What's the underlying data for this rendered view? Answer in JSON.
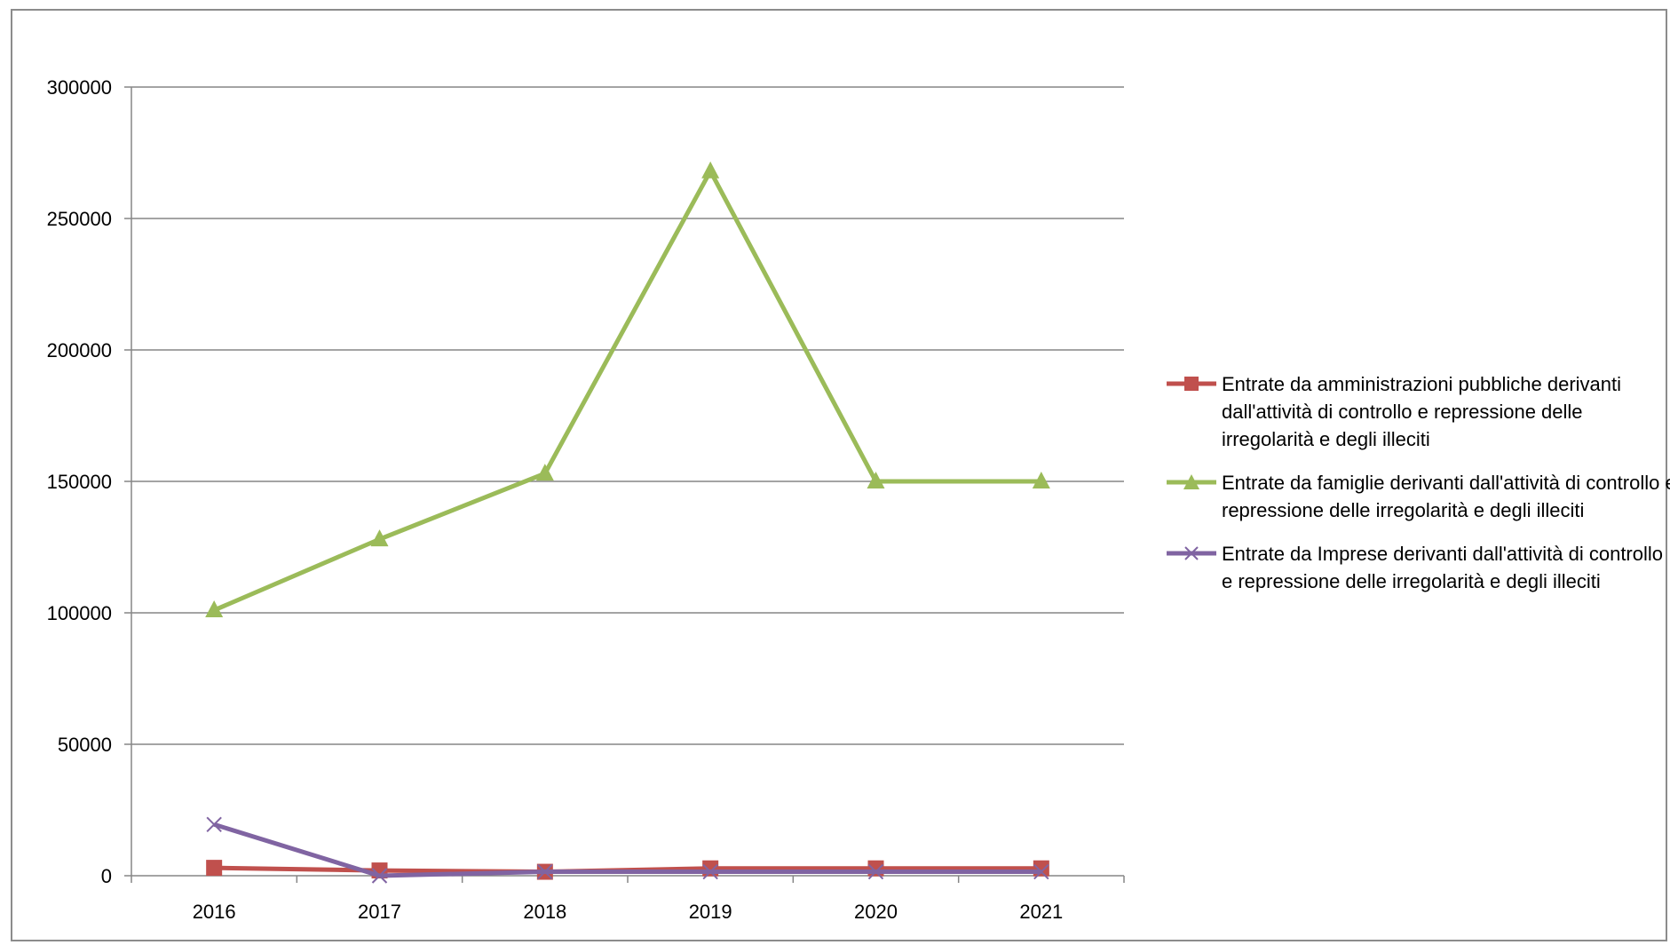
{
  "chart_data": {
    "type": "line",
    "title": "",
    "xlabel": "",
    "ylabel": "",
    "categories": [
      "2016",
      "2017",
      "2018",
      "2019",
      "2020",
      "2021"
    ],
    "ylim": [
      0,
      300000
    ],
    "yticks": [
      "0",
      "50000",
      "100000",
      "150000",
      "200000",
      "250000",
      "300000"
    ],
    "grid": true,
    "legend_position": "right",
    "series": [
      {
        "name": "Entrate da amministrazioni pubbliche derivanti dall'attività di controllo e repressione delle irregolarità e degli illeciti",
        "values": [
          3000,
          2000,
          1500,
          2800,
          2800,
          2800
        ],
        "color": "#c0504d",
        "marker": "square"
      },
      {
        "name": "Entrate da famiglie derivanti dall'attività di controllo e repressione delle irregolarità e degli illeciti",
        "values": [
          101000,
          128000,
          153000,
          268000,
          150000,
          150000
        ],
        "color": "#9bbb59",
        "marker": "triangle"
      },
      {
        "name": "Entrate da Imprese derivanti dall'attività di controllo e repressione delle irregolarità e degli illeciti",
        "values": [
          19500,
          0,
          1500,
          1500,
          1500,
          1500
        ],
        "color": "#8064a2",
        "marker": "x"
      }
    ]
  }
}
